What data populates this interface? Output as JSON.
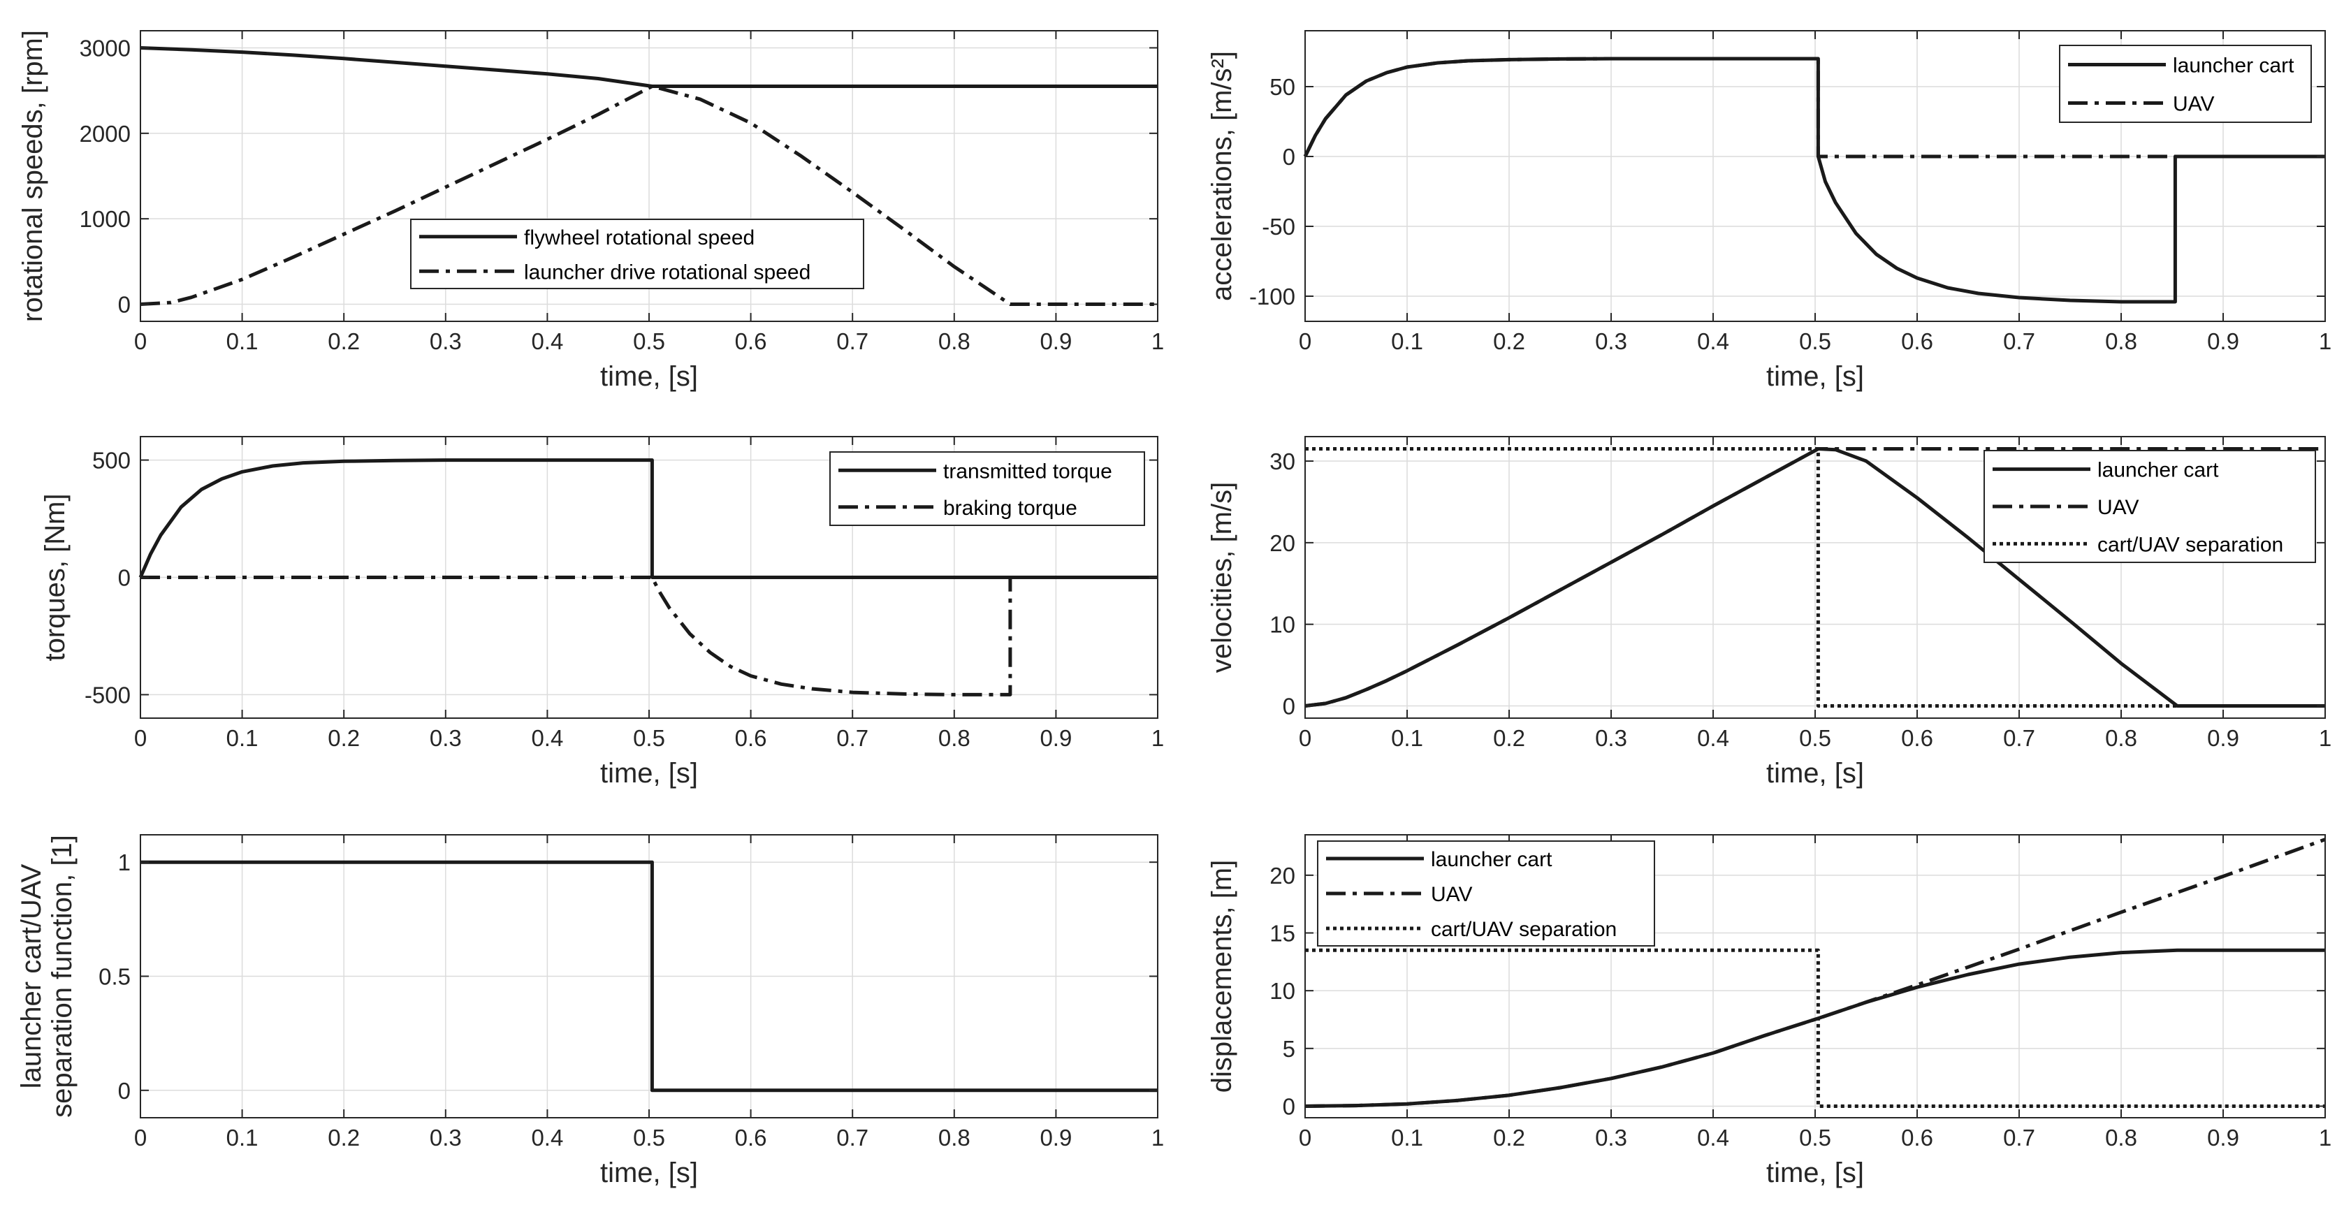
{
  "chart_data": [
    {
      "type": "line",
      "id": "rotational-speeds",
      "xlabel": "time, [s]",
      "ylabel": [
        "rotational speeds, [rpm]"
      ],
      "xlim": [
        0,
        1
      ],
      "ylim": [
        -200,
        3200
      ],
      "xticks": [
        0,
        0.1,
        0.2,
        0.3,
        0.4,
        0.5,
        0.6,
        0.7,
        0.8,
        0.9,
        1
      ],
      "xtick_labels": [
        "0",
        "0.1",
        "0.2",
        "0.3",
        "0.4",
        "0.5",
        "0.6",
        "0.7",
        "0.8",
        "0.9",
        "1"
      ],
      "yticks": [
        0,
        1000,
        2000,
        3000
      ],
      "ytick_labels": [
        "0",
        "1000",
        "2000",
        "3000"
      ],
      "grid": true,
      "legend": "bottom-center",
      "series": [
        {
          "name": "flywheel rotational speed",
          "style": "solid",
          "x": [
            0,
            0.05,
            0.1,
            0.15,
            0.2,
            0.25,
            0.3,
            0.35,
            0.4,
            0.45,
            0.503,
            0.6,
            0.7,
            0.8,
            0.9,
            1
          ],
          "y": [
            3000,
            2978,
            2950,
            2915,
            2875,
            2830,
            2785,
            2740,
            2695,
            2640,
            2550,
            2550,
            2550,
            2550,
            2550,
            2550
          ]
        },
        {
          "name": "launcher drive rotational speed",
          "style": "dashdot",
          "x": [
            0,
            0.03,
            0.05,
            0.1,
            0.15,
            0.2,
            0.25,
            0.3,
            0.35,
            0.4,
            0.45,
            0.503,
            0.55,
            0.6,
            0.65,
            0.7,
            0.75,
            0.8,
            0.855,
            0.9,
            1
          ],
          "y": [
            0,
            20,
            80,
            290,
            550,
            820,
            1090,
            1370,
            1650,
            1930,
            2220,
            2550,
            2400,
            2120,
            1730,
            1310,
            880,
            440,
            0,
            0,
            0
          ]
        }
      ]
    },
    {
      "type": "line",
      "id": "accelerations",
      "xlabel": "time, [s]",
      "ylabel": [
        "accelerations, [m/s²]"
      ],
      "xlim": [
        0,
        1
      ],
      "ylim": [
        -118,
        90
      ],
      "xticks": [
        0,
        0.1,
        0.2,
        0.3,
        0.4,
        0.5,
        0.6,
        0.7,
        0.8,
        0.9,
        1
      ],
      "xtick_labels": [
        "0",
        "0.1",
        "0.2",
        "0.3",
        "0.4",
        "0.5",
        "0.6",
        "0.7",
        "0.8",
        "0.9",
        "1"
      ],
      "yticks": [
        -100,
        -50,
        0,
        50
      ],
      "ytick_labels": [
        "-100",
        "-50",
        "0",
        "50"
      ],
      "grid": true,
      "legend": "top-right",
      "series": [
        {
          "name": "launcher cart",
          "style": "solid",
          "x": [
            0,
            0.01,
            0.02,
            0.04,
            0.06,
            0.08,
            0.1,
            0.13,
            0.16,
            0.2,
            0.25,
            0.3,
            0.4,
            0.5,
            0.503,
            0.503,
            0.51,
            0.52,
            0.54,
            0.56,
            0.58,
            0.6,
            0.63,
            0.66,
            0.7,
            0.75,
            0.8,
            0.853,
            0.853,
            0.9,
            1
          ],
          "y": [
            0,
            15,
            27,
            44,
            54,
            60,
            64,
            67,
            68.5,
            69.3,
            69.8,
            70,
            70,
            70,
            70,
            0,
            -18,
            -33,
            -55,
            -70,
            -80,
            -87,
            -94,
            -98,
            -101,
            -103,
            -104,
            -104,
            0,
            0,
            0
          ]
        },
        {
          "name": "UAV",
          "style": "dashdot",
          "x": [
            0,
            0.01,
            0.02,
            0.04,
            0.06,
            0.08,
            0.1,
            0.13,
            0.16,
            0.2,
            0.25,
            0.3,
            0.4,
            0.5,
            0.503,
            0.503,
            0.7,
            1
          ],
          "y": [
            0,
            15,
            27,
            44,
            54,
            60,
            64,
            67,
            68.5,
            69.3,
            69.8,
            70,
            70,
            70,
            70,
            0,
            0,
            0
          ]
        }
      ]
    },
    {
      "type": "line",
      "id": "torques",
      "xlabel": "time, [s]",
      "ylabel": [
        "torques, [Nm]"
      ],
      "xlim": [
        0,
        1
      ],
      "ylim": [
        -600,
        600
      ],
      "xticks": [
        0,
        0.1,
        0.2,
        0.3,
        0.4,
        0.5,
        0.6,
        0.7,
        0.8,
        0.9,
        1
      ],
      "xtick_labels": [
        "0",
        "0.1",
        "0.2",
        "0.3",
        "0.4",
        "0.5",
        "0.6",
        "0.7",
        "0.8",
        "0.9",
        "1"
      ],
      "yticks": [
        -500,
        0,
        500
      ],
      "ytick_labels": [
        "-500",
        "0",
        "500"
      ],
      "grid": true,
      "legend": "top-right",
      "series": [
        {
          "name": "transmitted torque",
          "style": "solid",
          "x": [
            0,
            0.01,
            0.02,
            0.04,
            0.06,
            0.08,
            0.1,
            0.13,
            0.16,
            0.2,
            0.25,
            0.3,
            0.4,
            0.5,
            0.503,
            0.503,
            0.7,
            1
          ],
          "y": [
            0,
            100,
            180,
            300,
            375,
            420,
            450,
            475,
            488,
            495,
            498,
            500,
            500,
            500,
            500,
            0,
            0,
            0
          ]
        },
        {
          "name": "braking torque",
          "style": "dashdot",
          "x": [
            0,
            0.2,
            0.4,
            0.503,
            0.51,
            0.52,
            0.54,
            0.56,
            0.58,
            0.6,
            0.63,
            0.66,
            0.7,
            0.75,
            0.8,
            0.855,
            0.855,
            0.9,
            1
          ],
          "y": [
            0,
            0,
            0,
            0,
            -60,
            -130,
            -240,
            -320,
            -380,
            -420,
            -455,
            -475,
            -490,
            -497,
            -500,
            -500,
            0,
            0,
            0
          ]
        }
      ]
    },
    {
      "type": "line",
      "id": "velocities",
      "xlabel": "time, [s]",
      "ylabel": [
        "velocities, [m/s]"
      ],
      "xlim": [
        0,
        1
      ],
      "ylim": [
        -1.5,
        33
      ],
      "xticks": [
        0,
        0.1,
        0.2,
        0.3,
        0.4,
        0.5,
        0.6,
        0.7,
        0.8,
        0.9,
        1
      ],
      "xtick_labels": [
        "0",
        "0.1",
        "0.2",
        "0.3",
        "0.4",
        "0.5",
        "0.6",
        "0.7",
        "0.8",
        "0.9",
        "1"
      ],
      "yticks": [
        0,
        10,
        20,
        30
      ],
      "ytick_labels": [
        "0",
        "10",
        "20",
        "30"
      ],
      "grid": true,
      "legend": "top-right",
      "series": [
        {
          "name": "launcher cart",
          "style": "solid",
          "x": [
            0,
            0.02,
            0.04,
            0.06,
            0.08,
            0.1,
            0.15,
            0.2,
            0.25,
            0.3,
            0.35,
            0.4,
            0.45,
            0.503,
            0.52,
            0.55,
            0.6,
            0.65,
            0.7,
            0.75,
            0.8,
            0.855,
            0.9,
            1
          ],
          "y": [
            0,
            0.3,
            1.0,
            2.0,
            3.1,
            4.3,
            7.5,
            10.8,
            14.2,
            17.6,
            21.0,
            24.5,
            27.9,
            31.5,
            31.4,
            30.0,
            25.5,
            20.6,
            15.5,
            10.4,
            5.2,
            0,
            0,
            0
          ]
        },
        {
          "name": "UAV",
          "style": "dashdot",
          "x": [
            0,
            0.02,
            0.04,
            0.06,
            0.08,
            0.1,
            0.15,
            0.2,
            0.25,
            0.3,
            0.35,
            0.4,
            0.45,
            0.503,
            0.7,
            1
          ],
          "y": [
            0,
            0.3,
            1.0,
            2.0,
            3.1,
            4.3,
            7.5,
            10.8,
            14.2,
            17.6,
            21.0,
            24.5,
            27.9,
            31.5,
            31.5,
            31.5
          ]
        },
        {
          "name": "cart/UAV separation",
          "style": "dotted",
          "x": [
            0,
            0.503,
            0.503,
            1
          ],
          "y": [
            31.5,
            31.5,
            0,
            0
          ]
        }
      ]
    },
    {
      "type": "line",
      "id": "separation-function",
      "xlabel": "time, [s]",
      "ylabel": [
        "launcher cart/UAV",
        "separation function, [1]"
      ],
      "xlim": [
        0,
        1
      ],
      "ylim": [
        -0.12,
        1.12
      ],
      "xticks": [
        0,
        0.1,
        0.2,
        0.3,
        0.4,
        0.5,
        0.6,
        0.7,
        0.8,
        0.9,
        1
      ],
      "xtick_labels": [
        "0",
        "0.1",
        "0.2",
        "0.3",
        "0.4",
        "0.5",
        "0.6",
        "0.7",
        "0.8",
        "0.9",
        "1"
      ],
      "yticks": [
        0,
        0.5,
        1
      ],
      "ytick_labels": [
        "0",
        "0.5",
        "1"
      ],
      "grid": true,
      "legend": "none",
      "series": [
        {
          "name": "separation function",
          "style": "solid",
          "x": [
            0,
            0.503,
            0.503,
            1
          ],
          "y": [
            1,
            1,
            0,
            0
          ]
        }
      ]
    },
    {
      "type": "line",
      "id": "displacements",
      "xlabel": "time, [s]",
      "ylabel": [
        "displacements, [m]"
      ],
      "xlim": [
        0,
        1
      ],
      "ylim": [
        -1,
        23.5
      ],
      "xticks": [
        0,
        0.1,
        0.2,
        0.3,
        0.4,
        0.5,
        0.6,
        0.7,
        0.8,
        0.9,
        1
      ],
      "xtick_labels": [
        "0",
        "0.1",
        "0.2",
        "0.3",
        "0.4",
        "0.5",
        "0.6",
        "0.7",
        "0.8",
        "0.9",
        "1"
      ],
      "yticks": [
        0,
        5,
        10,
        15,
        20
      ],
      "ytick_labels": [
        "0",
        "5",
        "10",
        "15",
        "20"
      ],
      "grid": true,
      "legend": "top-left",
      "series": [
        {
          "name": "launcher cart",
          "style": "solid",
          "x": [
            0,
            0.05,
            0.1,
            0.15,
            0.2,
            0.25,
            0.3,
            0.35,
            0.4,
            0.45,
            0.503,
            0.55,
            0.6,
            0.65,
            0.7,
            0.75,
            0.8,
            0.855,
            0.9,
            1
          ],
          "y": [
            0,
            0.05,
            0.2,
            0.5,
            0.95,
            1.6,
            2.4,
            3.4,
            4.6,
            6.1,
            7.6,
            9.0,
            10.3,
            11.4,
            12.3,
            12.9,
            13.3,
            13.5,
            13.5,
            13.5
          ]
        },
        {
          "name": "UAV",
          "style": "dashdot",
          "x": [
            0,
            0.05,
            0.1,
            0.15,
            0.2,
            0.25,
            0.3,
            0.35,
            0.4,
            0.45,
            0.503,
            0.6,
            0.7,
            0.8,
            0.9,
            1
          ],
          "y": [
            0,
            0.05,
            0.2,
            0.5,
            0.95,
            1.6,
            2.4,
            3.4,
            4.6,
            6.1,
            7.6,
            10.5,
            13.6,
            16.8,
            19.9,
            23.1
          ]
        },
        {
          "name": "cart/UAV separation",
          "style": "dotted",
          "x": [
            0,
            0.503,
            0.503,
            1
          ],
          "y": [
            13.5,
            13.5,
            0,
            0
          ]
        }
      ]
    }
  ]
}
